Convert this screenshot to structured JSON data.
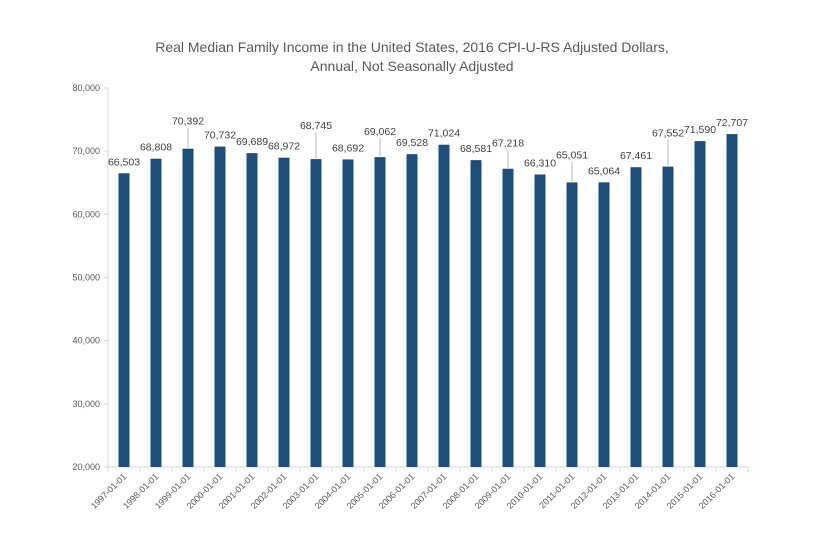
{
  "chart_data": {
    "type": "bar",
    "title_lines": [
      "Real Median Family Income in the United States, 2016 CPI-U-RS Adjusted Dollars,",
      "Annual, Not Seasonally Adjusted"
    ],
    "categories": [
      "1997-01-01",
      "1998-01-01",
      "1999-01-01",
      "2000-01-01",
      "2001-01-01",
      "2002-01-01",
      "2003-01-01",
      "2004-01-01",
      "2005-01-01",
      "2006-01-01",
      "2007-01-01",
      "2008-01-01",
      "2009-01-01",
      "2010-01-01",
      "2011-01-01",
      "2012-01-01",
      "2013-01-01",
      "2014-01-01",
      "2015-01-01",
      "2016-01-01"
    ],
    "values": [
      66503,
      68808,
      70392,
      70732,
      69689,
      68972,
      68745,
      68692,
      69062,
      69528,
      71024,
      68581,
      67218,
      66310,
      65051,
      65064,
      67461,
      67552,
      71590,
      72707
    ],
    "data_labels": [
      "66,503",
      "68,808",
      "70,392",
      "70,732",
      "69,689",
      "68,972",
      "68,745",
      "68,692",
      "69,062",
      "69,528",
      "71,024",
      "68,581",
      "67,218",
      "66,310",
      "65,051",
      "65,064",
      "67,461",
      "67,552",
      "71,590",
      "72,707"
    ],
    "ylim": [
      20000,
      80000
    ],
    "yticks": [
      20000,
      30000,
      40000,
      50000,
      60000,
      70000,
      80000
    ],
    "ytick_labels": [
      "20,000",
      "30,000",
      "40,000",
      "50,000",
      "60,000",
      "70,000",
      "80,000"
    ],
    "xlabel": "",
    "ylabel": "",
    "grid": false,
    "legend": "none",
    "bar_color": "#1f4e79",
    "axis_color": "#d9d9d9"
  }
}
